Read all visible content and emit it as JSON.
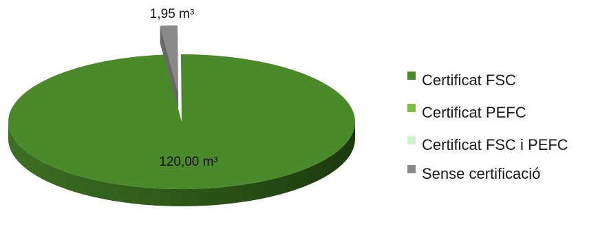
{
  "chart_data": {
    "type": "pie",
    "title": "",
    "unit": "m³",
    "slices": [
      {
        "name": "Certificat FSC",
        "value": 120.0,
        "label": "120,00 m³",
        "color": "#4a8a2a"
      },
      {
        "name": "Certificat PEFC",
        "value": 0.0,
        "label": "",
        "color": "#7bbf3e"
      },
      {
        "name": "Certificat FSC i PEFC",
        "value": 0.0,
        "label": "",
        "color": "#ccf5cc"
      },
      {
        "name": "Sense certificació",
        "value": 1.95,
        "label": "1,95 m³",
        "color": "#8a8a8a"
      }
    ],
    "legend_position": "right",
    "style": "3d"
  }
}
